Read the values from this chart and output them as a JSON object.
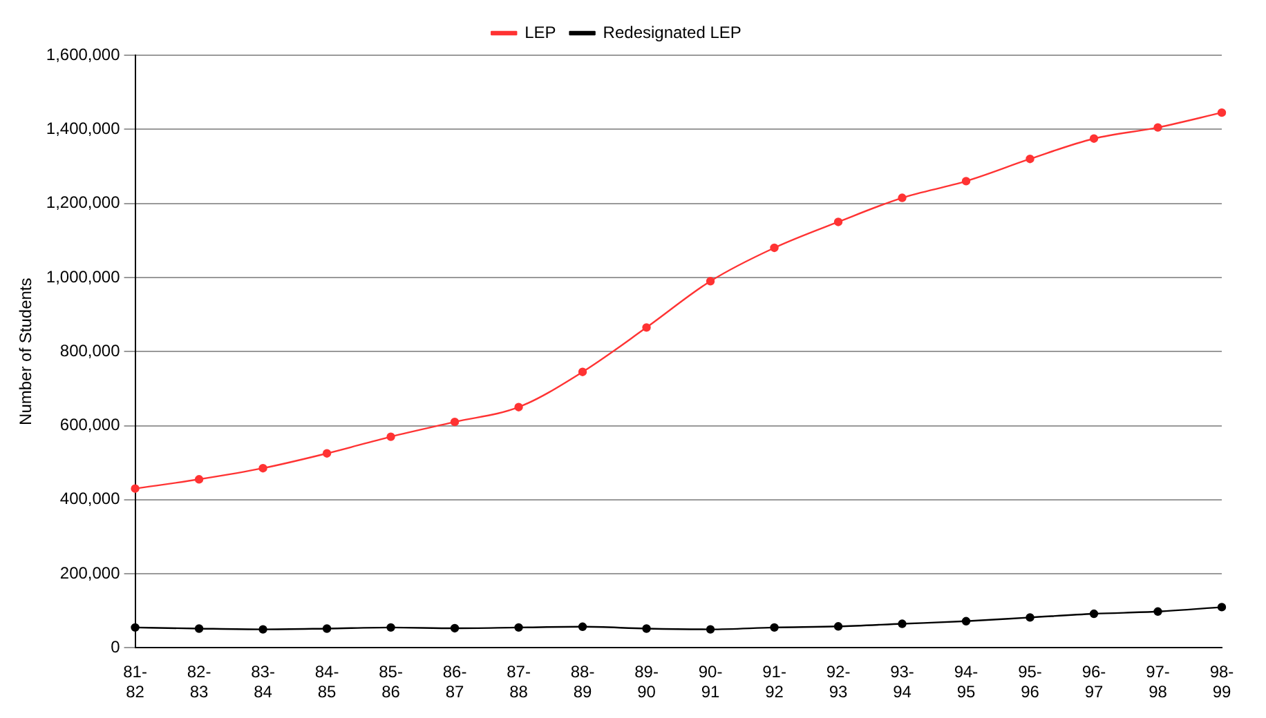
{
  "chart_data": {
    "type": "line",
    "ylabel": "Number of Students",
    "categories": [
      "81-82",
      "82-83",
      "83-84",
      "84-85",
      "85-86",
      "86-87",
      "87-88",
      "88-89",
      "89-90",
      "90-91",
      "91-92",
      "92-93",
      "93-94",
      "94-95",
      "95-96",
      "96-97",
      "97-98",
      "98-99"
    ],
    "series": [
      {
        "name": "LEP",
        "color": "#ff3333",
        "values": [
          430000,
          455000,
          485000,
          525000,
          570000,
          610000,
          650000,
          745000,
          865000,
          990000,
          1080000,
          1150000,
          1215000,
          1260000,
          1320000,
          1375000,
          1405000,
          1445000
        ]
      },
      {
        "name": "Redesignated LEP",
        "color": "#000000",
        "values": [
          55000,
          52000,
          50000,
          52000,
          55000,
          53000,
          55000,
          57000,
          52000,
          50000,
          55000,
          58000,
          65000,
          72000,
          82000,
          92000,
          98000,
          110000
        ]
      }
    ],
    "ylim": [
      0,
      1600000
    ],
    "yticks": [
      {
        "value": 0,
        "label": "0"
      },
      {
        "value": 200000,
        "label": "200,000"
      },
      {
        "value": 400000,
        "label": "400,000"
      },
      {
        "value": 600000,
        "label": "600,000"
      },
      {
        "value": 800000,
        "label": "800,000"
      },
      {
        "value": 1000000,
        "label": "1,000,000"
      },
      {
        "value": 1200000,
        "label": "1,200,000"
      },
      {
        "value": 1400000,
        "label": "1,400,000"
      },
      {
        "value": 1600000,
        "label": "1,600,000"
      }
    ],
    "grid": "y",
    "legend": "top",
    "marker": "circle",
    "line_style": "solid"
  }
}
